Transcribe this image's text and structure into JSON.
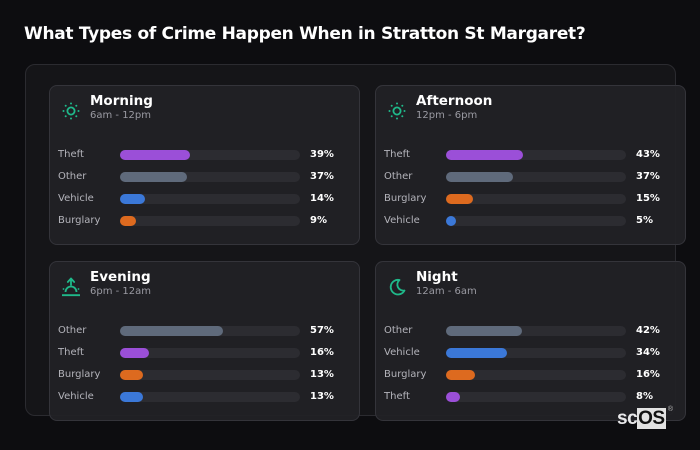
{
  "page": {
    "title": "What Types of Crime Happen When in Stratton St Margaret?",
    "logo": {
      "prefix": "sc",
      "highlight": "OS",
      "mark": "®"
    }
  },
  "colors": {
    "Theft": "#9b4fd8",
    "Other": "#5f6a7b",
    "Vehicle": "#3b78d8",
    "Burglary": "#dd6a1f",
    "icon": "#1fb98a"
  },
  "chart_data": {
    "type": "bar",
    "title": "What Types of Crime Happen When in Stratton St Margaret?",
    "orientation": "horizontal",
    "value_unit": "%",
    "xlim": [
      0,
      100
    ],
    "panels": [
      {
        "name": "Morning",
        "time_range": "6am - 12pm",
        "icon": "sun-icon",
        "categories": [
          "Theft",
          "Other",
          "Vehicle",
          "Burglary"
        ],
        "values": [
          39,
          37,
          14,
          9
        ]
      },
      {
        "name": "Afternoon",
        "time_range": "12pm - 6pm",
        "icon": "sun-icon",
        "categories": [
          "Theft",
          "Other",
          "Burglary",
          "Vehicle"
        ],
        "values": [
          43,
          37,
          15,
          5
        ]
      },
      {
        "name": "Evening",
        "time_range": "6pm - 12am",
        "icon": "sunset-icon",
        "categories": [
          "Other",
          "Theft",
          "Burglary",
          "Vehicle"
        ],
        "values": [
          57,
          16,
          13,
          13
        ]
      },
      {
        "name": "Night",
        "time_range": "12am - 6am",
        "icon": "moon-icon",
        "categories": [
          "Other",
          "Vehicle",
          "Burglary",
          "Theft"
        ],
        "values": [
          42,
          34,
          16,
          8
        ]
      }
    ]
  },
  "cards": [
    {
      "title": "Morning",
      "subtitle": "6am - 12pm",
      "rows": [
        {
          "label": "Theft",
          "value": "39%"
        },
        {
          "label": "Other",
          "value": "37%"
        },
        {
          "label": "Vehicle",
          "value": "14%"
        },
        {
          "label": "Burglary",
          "value": "9%"
        }
      ]
    },
    {
      "title": "Afternoon",
      "subtitle": "12pm - 6pm",
      "rows": [
        {
          "label": "Theft",
          "value": "43%"
        },
        {
          "label": "Other",
          "value": "37%"
        },
        {
          "label": "Burglary",
          "value": "15%"
        },
        {
          "label": "Vehicle",
          "value": "5%"
        }
      ]
    },
    {
      "title": "Evening",
      "subtitle": "6pm - 12am",
      "rows": [
        {
          "label": "Other",
          "value": "57%"
        },
        {
          "label": "Theft",
          "value": "16%"
        },
        {
          "label": "Burglary",
          "value": "13%"
        },
        {
          "label": "Vehicle",
          "value": "13%"
        }
      ]
    },
    {
      "title": "Night",
      "subtitle": "12am - 6am",
      "rows": [
        {
          "label": "Other",
          "value": "42%"
        },
        {
          "label": "Vehicle",
          "value": "34%"
        },
        {
          "label": "Burglary",
          "value": "16%"
        },
        {
          "label": "Theft",
          "value": "8%"
        }
      ]
    }
  ]
}
